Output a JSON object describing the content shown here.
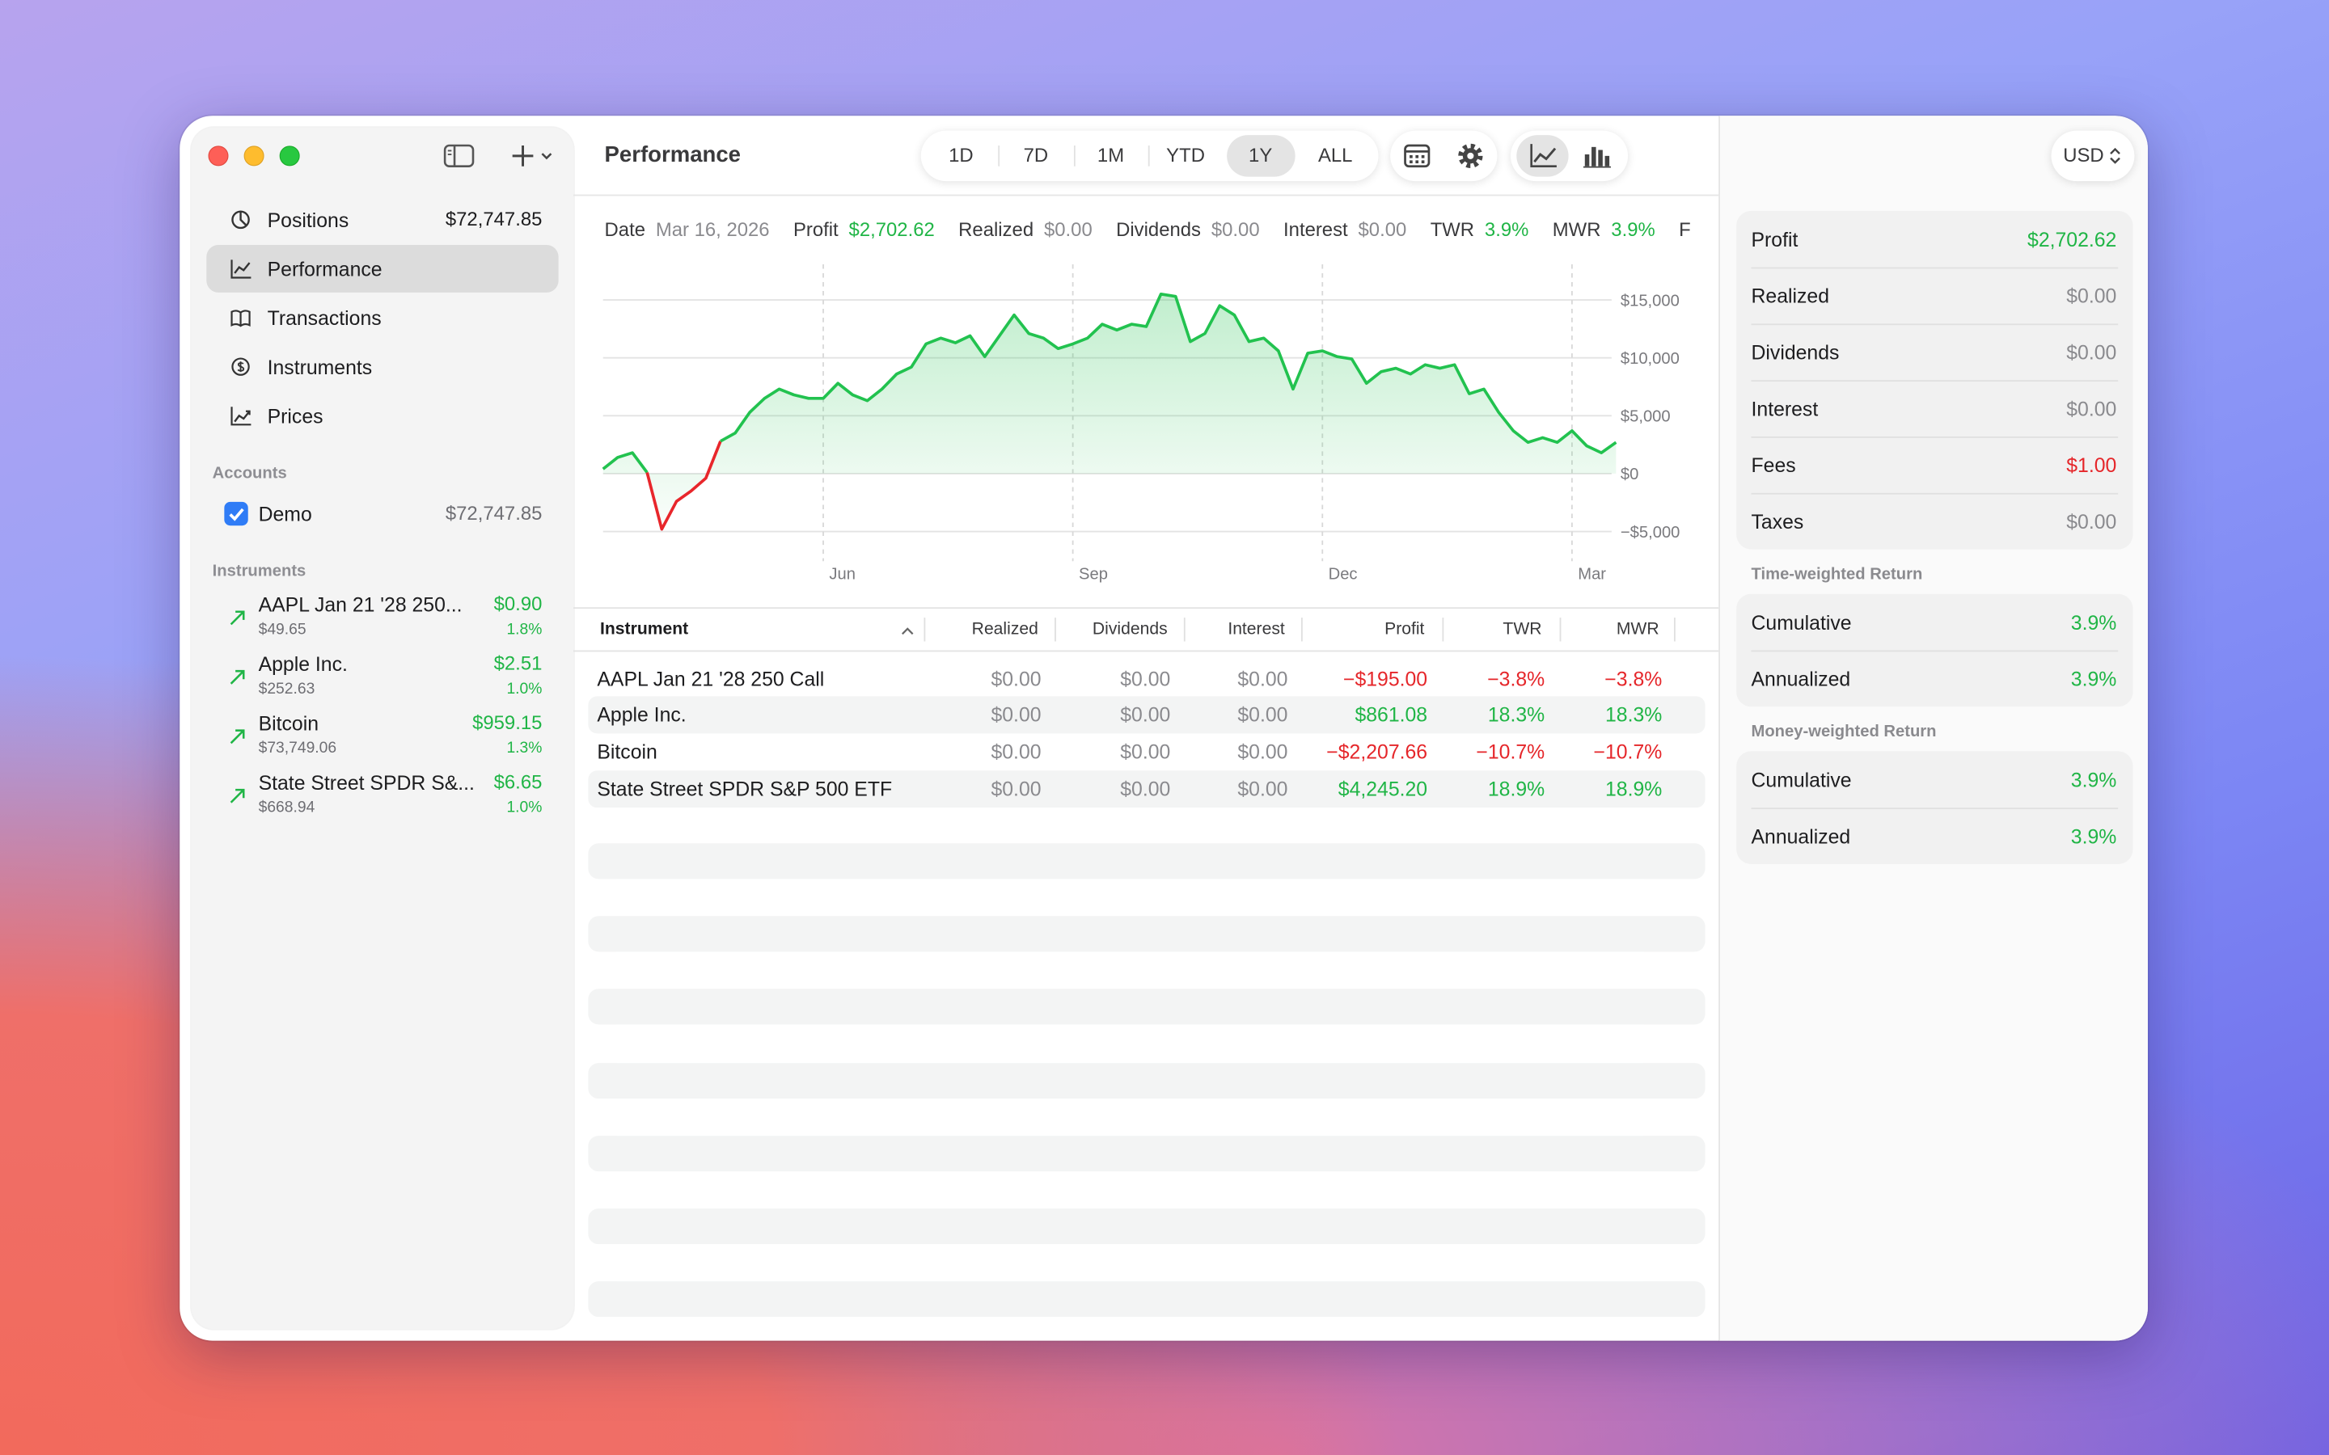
{
  "window": {
    "title": "Performance"
  },
  "sidebar": {
    "nav": [
      {
        "label": "Positions",
        "value": "$72,747.85"
      },
      {
        "label": "Performance"
      },
      {
        "label": "Transactions"
      },
      {
        "label": "Instruments"
      },
      {
        "label": "Prices"
      }
    ],
    "selected": 1,
    "accounts_heading": "Accounts",
    "accounts": [
      {
        "name": "Demo",
        "value": "$72,747.85",
        "checked": true
      }
    ],
    "instruments_heading": "Instruments",
    "instruments": [
      {
        "name": "AAPL Jan 21 '28 250...",
        "price": "$49.65",
        "change": "$0.90",
        "percent": "1.8%"
      },
      {
        "name": "Apple Inc.",
        "price": "$252.63",
        "change": "$2.51",
        "percent": "1.0%"
      },
      {
        "name": "Bitcoin",
        "price": "$73,749.06",
        "change": "$959.15",
        "percent": "1.3%"
      },
      {
        "name": "State Street SPDR S&...",
        "price": "$668.94",
        "change": "$6.65",
        "percent": "1.0%"
      }
    ]
  },
  "toolbar": {
    "ranges": [
      "1D",
      "7D",
      "1M",
      "YTD",
      "1Y",
      "ALL"
    ],
    "selected_range": 4,
    "chart_mode": "line"
  },
  "summary": [
    {
      "label": "Date",
      "value": "Mar 16, 2026",
      "tone": "neutral"
    },
    {
      "label": "Profit",
      "value": "$2,702.62",
      "tone": "positive"
    },
    {
      "label": "Realized",
      "value": "$0.00",
      "tone": "neutral"
    },
    {
      "label": "Dividends",
      "value": "$0.00",
      "tone": "neutral"
    },
    {
      "label": "Interest",
      "value": "$0.00",
      "tone": "neutral"
    },
    {
      "label": "TWR",
      "value": "3.9%",
      "tone": "positive"
    },
    {
      "label": "MWR",
      "value": "3.9%",
      "tone": "positive"
    },
    {
      "label": "F"
    }
  ],
  "chart_data": {
    "type": "line",
    "color": "#22c24f",
    "negative_color": "#e8262b",
    "fill": true,
    "grid": true,
    "categories": [
      null,
      null,
      null,
      null,
      null,
      null,
      null,
      null,
      null,
      null,
      null,
      null,
      null,
      null,
      null,
      "Jun",
      null,
      null,
      null,
      null,
      null,
      null,
      null,
      null,
      null,
      null,
      null,
      null,
      null,
      null,
      null,
      null,
      "Sep",
      null,
      null,
      null,
      null,
      null,
      null,
      null,
      null,
      null,
      null,
      null,
      null,
      null,
      null,
      null,
      null,
      "Dec",
      null,
      null,
      null,
      null,
      null,
      null,
      null,
      null,
      null,
      null,
      null,
      null,
      null,
      null,
      null,
      null,
      "Mar",
      null,
      null,
      null
    ],
    "values": [
      400,
      1400,
      1800,
      100,
      -4800,
      -2400,
      -1500,
      -400,
      2800,
      3500,
      5300,
      6500,
      7300,
      6800,
      6500,
      6500,
      7800,
      6800,
      6300,
      7300,
      8600,
      9200,
      11200,
      11700,
      11300,
      11900,
      10100,
      11900,
      13700,
      12100,
      11700,
      10800,
      11200,
      11700,
      12900,
      12400,
      12900,
      12700,
      15500,
      15300,
      11400,
      12100,
      14500,
      13700,
      11400,
      11700,
      10600,
      7300,
      10400,
      10600,
      10100,
      9900,
      7800,
      8800,
      9100,
      8600,
      9400,
      9100,
      9400,
      6900,
      7300,
      5300,
      3700,
      2700,
      3100,
      2700,
      3700,
      2400,
      1800,
      2700
    ],
    "ylim": [
      -5000,
      17500
    ],
    "yticks": [
      {
        "value": -5000,
        "label": "−$5,000"
      },
      {
        "value": 0,
        "label": "$0"
      },
      {
        "value": 5000,
        "label": "$5,000"
      },
      {
        "value": 10000,
        "label": "$10,000"
      },
      {
        "value": 15000,
        "label": "$15,000"
      }
    ]
  },
  "table": {
    "columns": [
      "Instrument",
      "Realized",
      "Dividends",
      "Interest",
      "Profit",
      "TWR",
      "MWR"
    ],
    "rows": [
      [
        "AAPL Jan 21 '28 250 Call",
        "$0.00",
        "$0.00",
        "$0.00",
        "−$195.00",
        "−3.8%",
        "−3.8%"
      ],
      [
        "Apple Inc.",
        "$0.00",
        "$0.00",
        "$0.00",
        "$861.08",
        "18.3%",
        "18.3%"
      ],
      [
        "Bitcoin",
        "$0.00",
        "$0.00",
        "$0.00",
        "−$2,207.66",
        "−10.7%",
        "−10.7%"
      ],
      [
        "State Street SPDR S&P 500 ETF",
        "$0.00",
        "$0.00",
        "$0.00",
        "$4,245.20",
        "18.9%",
        "18.9%"
      ]
    ]
  },
  "inspector": {
    "currency": "USD",
    "groups": [
      {
        "items": [
          {
            "label": "Profit",
            "value": "$2,702.62",
            "tone": "positive"
          },
          {
            "label": "Realized",
            "value": "$0.00",
            "tone": "neutral"
          },
          {
            "label": "Dividends",
            "value": "$0.00",
            "tone": "neutral"
          },
          {
            "label": "Interest",
            "value": "$0.00",
            "tone": "neutral"
          },
          {
            "label": "Fees",
            "value": "$1.00",
            "tone": "negative"
          },
          {
            "label": "Taxes",
            "value": "$0.00",
            "tone": "neutral"
          }
        ]
      },
      {
        "heading": "Time-weighted Return",
        "items": [
          {
            "label": "Cumulative",
            "value": "3.9%",
            "tone": "positive"
          },
          {
            "label": "Annualized",
            "value": "3.9%",
            "tone": "positive"
          }
        ]
      },
      {
        "heading": "Money-weighted Return",
        "items": [
          {
            "label": "Cumulative",
            "value": "3.9%",
            "tone": "positive"
          },
          {
            "label": "Annualized",
            "value": "3.9%",
            "tone": "positive"
          }
        ]
      }
    ]
  }
}
